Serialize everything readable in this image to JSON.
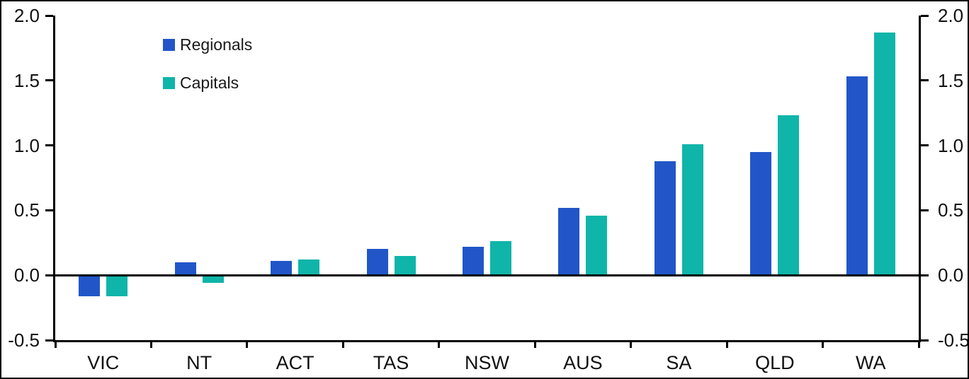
{
  "figure": {
    "background_color": "#FFFFFF",
    "border_color": "#000000",
    "text_color": "#111111"
  },
  "legend": {
    "position": "top-left-inside"
  },
  "chart_data": {
    "type": "bar",
    "title": "",
    "xlabel": "",
    "ylabel": "",
    "categories": [
      "VIC",
      "NT",
      "ACT",
      "TAS",
      "NSW",
      "AUS",
      "SA",
      "QLD",
      "WA"
    ],
    "series": [
      {
        "name": "Regionals",
        "color": "#2256C8",
        "values": [
          -0.16,
          0.1,
          0.11,
          0.2,
          0.22,
          0.52,
          0.88,
          0.95,
          1.53
        ]
      },
      {
        "name": "Capitals",
        "color": "#0FB5A9",
        "values": [
          -0.16,
          -0.06,
          0.12,
          0.15,
          0.26,
          0.46,
          1.01,
          1.23,
          1.87
        ]
      }
    ],
    "ylim": [
      -0.5,
      2.0
    ],
    "yticks": [
      2.0,
      1.5,
      1.0,
      0.5,
      0.0,
      -0.5
    ],
    "ytick_labels": [
      "2.0",
      "1.5",
      "1.0",
      "0.5",
      "0.0",
      "-0.5"
    ],
    "y_axis_sides": "left-and-right-mirrored",
    "zero_baseline": true,
    "grid": false,
    "legend_position": "upper-left-inside"
  }
}
